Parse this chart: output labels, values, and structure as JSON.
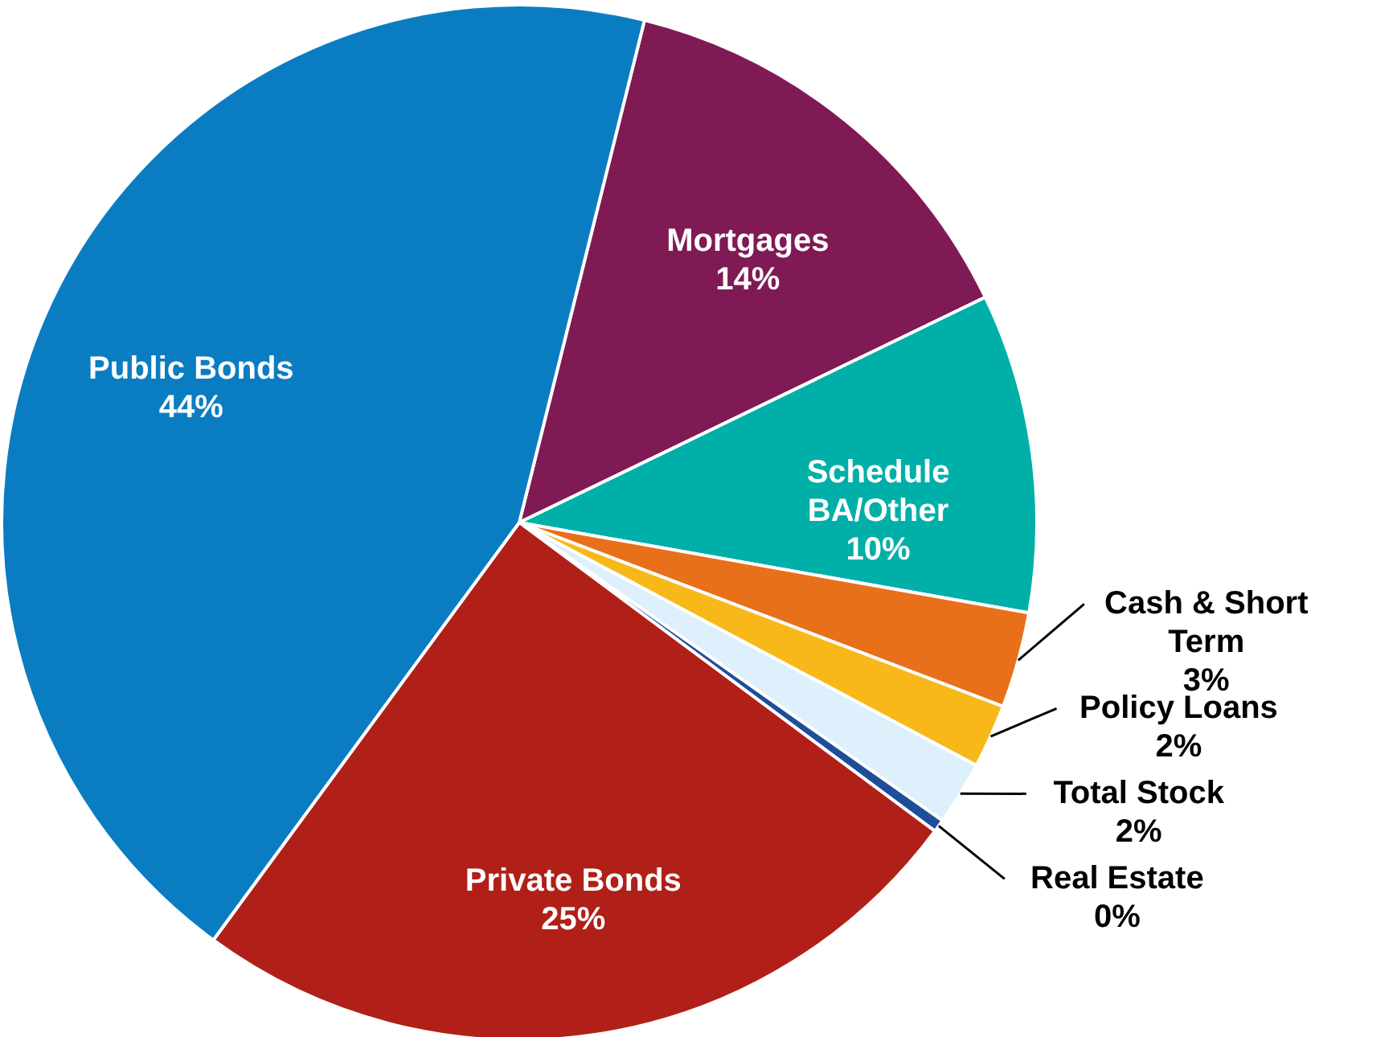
{
  "chart_data": {
    "type": "pie",
    "categories": [
      "Mortgages",
      "Schedule BA/Other",
      "Cash & Short Term",
      "Policy Loans",
      "Total Stock",
      "Real Estate",
      "Private Bonds",
      "Public Bonds"
    ],
    "values": [
      14,
      10,
      3,
      2,
      2,
      0.4,
      25,
      44
    ],
    "value_labels": [
      "14%",
      "10%",
      "3%",
      "2%",
      "2%",
      "0%",
      "25%",
      "44%"
    ],
    "colors": [
      "#7f1a55",
      "#00b0a8",
      "#e8701a",
      "#f9b81a",
      "#ddf0fb",
      "#1f4e99",
      "#b02018",
      "#0a7dc2"
    ]
  }
}
